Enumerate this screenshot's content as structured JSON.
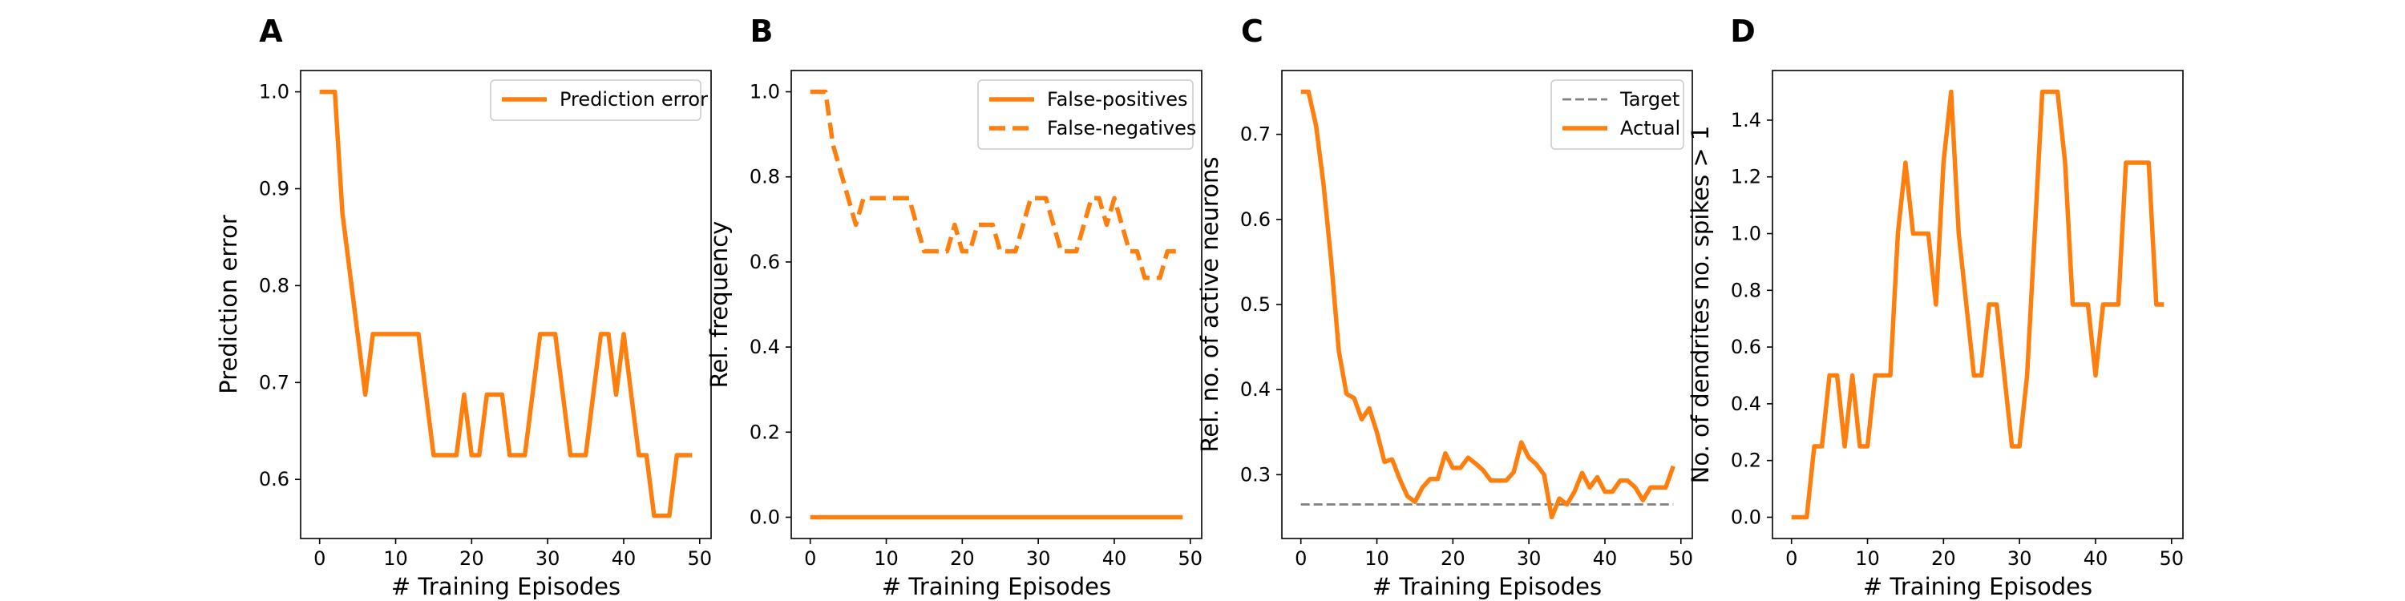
{
  "colors": {
    "orange": "#ff7f0e",
    "target_gray": "#808080",
    "axis": "#000000",
    "legend_border": "#cccccc"
  },
  "chart_data": [
    {
      "panel": "A",
      "type": "line",
      "xlabel": "# Training Episodes",
      "ylabel": "Prediction error",
      "xlim": [
        -2.5,
        51.5
      ],
      "ylim": [
        0.539,
        1.022
      ],
      "xticks": [
        0,
        10,
        20,
        30,
        40,
        50
      ],
      "yticks": [
        0.6,
        0.7,
        0.8,
        0.9,
        1.0
      ],
      "ytick_labels": [
        "0.6",
        "0.7",
        "0.8",
        "0.9",
        "1.0"
      ],
      "legend_position": "upper right",
      "series": [
        {
          "name": "Prediction error",
          "style": "solid",
          "x": [
            0,
            1,
            2,
            3,
            4,
            5,
            6,
            7,
            8,
            9,
            10,
            11,
            12,
            13,
            14,
            15,
            16,
            17,
            18,
            19,
            20,
            21,
            22,
            23,
            24,
            25,
            26,
            27,
            28,
            29,
            30,
            31,
            32,
            33,
            34,
            35,
            36,
            37,
            38,
            39,
            40,
            41,
            42,
            43,
            44,
            45,
            46,
            47,
            48,
            49
          ],
          "y": [
            1.0,
            1.0,
            1.0,
            0.875,
            0.8125,
            0.75,
            0.6875,
            0.75,
            0.75,
            0.75,
            0.75,
            0.75,
            0.75,
            0.75,
            0.6875,
            0.625,
            0.625,
            0.625,
            0.625,
            0.6875,
            0.625,
            0.625,
            0.6875,
            0.6875,
            0.6875,
            0.625,
            0.625,
            0.625,
            0.6875,
            0.75,
            0.75,
            0.75,
            0.6875,
            0.625,
            0.625,
            0.625,
            0.6875,
            0.75,
            0.75,
            0.6875,
            0.75,
            0.6875,
            0.625,
            0.625,
            0.5625,
            0.5625,
            0.5625,
            0.625,
            0.625,
            0.625
          ]
        }
      ]
    },
    {
      "panel": "B",
      "type": "line",
      "xlabel": "# Training Episodes",
      "ylabel": "Rel. frequency",
      "xlim": [
        -2.5,
        51.5
      ],
      "ylim": [
        -0.05,
        1.05
      ],
      "xticks": [
        0,
        10,
        20,
        30,
        40,
        50
      ],
      "yticks": [
        0.0,
        0.2,
        0.4,
        0.6,
        0.8,
        1.0
      ],
      "ytick_labels": [
        "0.0",
        "0.2",
        "0.4",
        "0.6",
        "0.8",
        "1.0"
      ],
      "legend_position": "upper right",
      "series": [
        {
          "name": "False-positives",
          "style": "solid",
          "x": [
            0,
            49
          ],
          "y": [
            0.0,
            0.0
          ]
        },
        {
          "name": "False-negatives",
          "style": "dashed",
          "x": [
            0,
            1,
            2,
            3,
            4,
            5,
            6,
            7,
            8,
            9,
            10,
            11,
            12,
            13,
            14,
            15,
            16,
            17,
            18,
            19,
            20,
            21,
            22,
            23,
            24,
            25,
            26,
            27,
            28,
            29,
            30,
            31,
            32,
            33,
            34,
            35,
            36,
            37,
            38,
            39,
            40,
            41,
            42,
            43,
            44,
            45,
            46,
            47,
            48,
            49
          ],
          "y": [
            1.0,
            1.0,
            1.0,
            0.875,
            0.8125,
            0.75,
            0.6875,
            0.75,
            0.75,
            0.75,
            0.75,
            0.75,
            0.75,
            0.75,
            0.6875,
            0.625,
            0.625,
            0.625,
            0.625,
            0.6875,
            0.625,
            0.625,
            0.6875,
            0.6875,
            0.6875,
            0.625,
            0.625,
            0.625,
            0.6875,
            0.75,
            0.75,
            0.75,
            0.6875,
            0.625,
            0.625,
            0.625,
            0.6875,
            0.75,
            0.75,
            0.6875,
            0.75,
            0.6875,
            0.625,
            0.625,
            0.5625,
            0.5625,
            0.5625,
            0.625,
            0.625,
            0.625
          ]
        }
      ]
    },
    {
      "panel": "C",
      "type": "line",
      "xlabel": "# Training Episodes",
      "ylabel": "Rel. no. of active neurons",
      "xlim": [
        -2.5,
        51.5
      ],
      "ylim": [
        0.225,
        0.775
      ],
      "xticks": [
        0,
        10,
        20,
        30,
        40,
        50
      ],
      "yticks": [
        0.3,
        0.4,
        0.5,
        0.6,
        0.7
      ],
      "ytick_labels": [
        "0.3",
        "0.4",
        "0.5",
        "0.6",
        "0.7"
      ],
      "legend_position": "upper right",
      "series": [
        {
          "name": "Target",
          "style": "dashed-thin",
          "x": [
            0,
            49
          ],
          "y": [
            0.265,
            0.265
          ]
        },
        {
          "name": "Actual",
          "style": "solid",
          "x": [
            0,
            1,
            2,
            3,
            4,
            5,
            6,
            7,
            8,
            9,
            10,
            11,
            12,
            13,
            14,
            15,
            16,
            17,
            18,
            19,
            20,
            21,
            22,
            23,
            24,
            25,
            26,
            27,
            28,
            29,
            30,
            31,
            32,
            33,
            34,
            35,
            36,
            37,
            38,
            39,
            40,
            41,
            42,
            43,
            44,
            45,
            46,
            47,
            48,
            49
          ],
          "y": [
            0.75,
            0.75,
            0.71,
            0.64,
            0.55,
            0.445,
            0.395,
            0.39,
            0.365,
            0.378,
            0.35,
            0.315,
            0.318,
            0.295,
            0.275,
            0.268,
            0.285,
            0.295,
            0.295,
            0.325,
            0.308,
            0.308,
            0.32,
            0.313,
            0.305,
            0.293,
            0.293,
            0.293,
            0.303,
            0.338,
            0.32,
            0.312,
            0.3,
            0.25,
            0.272,
            0.265,
            0.28,
            0.302,
            0.285,
            0.297,
            0.28,
            0.28,
            0.293,
            0.293,
            0.285,
            0.27,
            0.285,
            0.285,
            0.285,
            0.31
          ]
        }
      ]
    },
    {
      "panel": "D",
      "type": "line",
      "xlabel": "# Training Episodes",
      "ylabel": "No. of dendrites no. spikes > 1",
      "xlim": [
        -2.5,
        51.5
      ],
      "ylim": [
        -0.075,
        1.575
      ],
      "xticks": [
        0,
        10,
        20,
        30,
        40,
        50
      ],
      "yticks": [
        0.0,
        0.2,
        0.4,
        0.6,
        0.8,
        1.0,
        1.2,
        1.4
      ],
      "ytick_labels": [
        "0.0",
        "0.2",
        "0.4",
        "0.6",
        "0.8",
        "1.0",
        "1.2",
        "1.4"
      ],
      "legend_position": "none",
      "series": [
        {
          "style": "solid",
          "x": [
            0,
            1,
            2,
            3,
            4,
            5,
            6,
            7,
            8,
            9,
            10,
            11,
            12,
            13,
            14,
            15,
            16,
            17,
            18,
            19,
            20,
            21,
            22,
            23,
            24,
            25,
            26,
            27,
            28,
            29,
            30,
            31,
            32,
            33,
            34,
            35,
            36,
            37,
            38,
            39,
            40,
            41,
            42,
            43,
            44,
            45,
            46,
            47,
            48,
            49
          ],
          "y": [
            0.0,
            0.0,
            0.0,
            0.25,
            0.25,
            0.5,
            0.5,
            0.25,
            0.5,
            0.25,
            0.25,
            0.5,
            0.5,
            0.5,
            1.0,
            1.25,
            1.0,
            1.0,
            1.0,
            0.75,
            1.25,
            1.5,
            1.0,
            0.75,
            0.5,
            0.5,
            0.75,
            0.75,
            0.5,
            0.25,
            0.25,
            0.5,
            1.0,
            1.5,
            1.5,
            1.5,
            1.25,
            0.75,
            0.75,
            0.75,
            0.5,
            0.75,
            0.75,
            0.75,
            1.25,
            1.25,
            1.25,
            1.25,
            0.75,
            0.75
          ]
        }
      ]
    }
  ]
}
